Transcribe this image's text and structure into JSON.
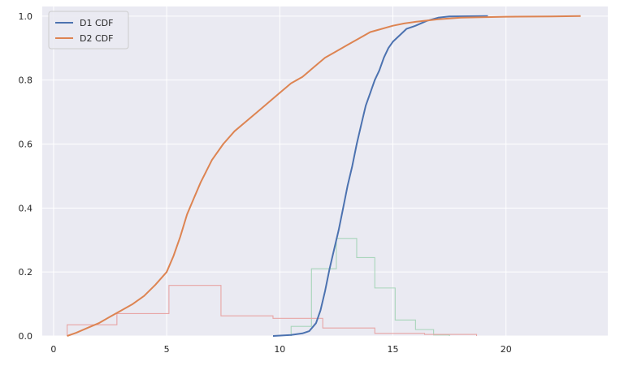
{
  "chart_data": {
    "type": "line",
    "title": "",
    "xlabel": "",
    "ylabel": "",
    "xlim": [
      -0.5,
      24.5
    ],
    "ylim": [
      0,
      1.03
    ],
    "x_ticks": [
      0,
      5,
      10,
      15,
      20
    ],
    "y_ticks": [
      0.0,
      0.2,
      0.4,
      0.6,
      0.8,
      1.0
    ],
    "grid": true,
    "legend_position": "top-left",
    "background": "#eaeaf2",
    "series": [
      {
        "name": "D1 CDF",
        "kind": "cdf",
        "color": "#4c72b0",
        "points": [
          [
            9.7,
            0.0
          ],
          [
            10.5,
            0.003
          ],
          [
            11.0,
            0.008
          ],
          [
            11.3,
            0.015
          ],
          [
            11.6,
            0.04
          ],
          [
            11.8,
            0.08
          ],
          [
            12.0,
            0.14
          ],
          [
            12.2,
            0.21
          ],
          [
            12.4,
            0.27
          ],
          [
            12.6,
            0.33
          ],
          [
            12.8,
            0.4
          ],
          [
            13.0,
            0.47
          ],
          [
            13.2,
            0.53
          ],
          [
            13.4,
            0.6
          ],
          [
            13.6,
            0.66
          ],
          [
            13.8,
            0.72
          ],
          [
            14.0,
            0.76
          ],
          [
            14.2,
            0.8
          ],
          [
            14.4,
            0.83
          ],
          [
            14.6,
            0.87
          ],
          [
            14.8,
            0.9
          ],
          [
            15.0,
            0.92
          ],
          [
            15.3,
            0.94
          ],
          [
            15.6,
            0.96
          ],
          [
            16.0,
            0.97
          ],
          [
            16.5,
            0.985
          ],
          [
            17.0,
            0.995
          ],
          [
            17.5,
            0.999
          ],
          [
            19.2,
            1.0
          ]
        ]
      },
      {
        "name": "D2 CDF",
        "kind": "cdf",
        "color": "#dd8452",
        "points": [
          [
            0.6,
            0.0
          ],
          [
            1.0,
            0.01
          ],
          [
            1.5,
            0.025
          ],
          [
            2.0,
            0.04
          ],
          [
            2.5,
            0.06
          ],
          [
            3.0,
            0.08
          ],
          [
            3.5,
            0.1
          ],
          [
            4.0,
            0.125
          ],
          [
            4.5,
            0.16
          ],
          [
            5.0,
            0.2
          ],
          [
            5.3,
            0.25
          ],
          [
            5.6,
            0.31
          ],
          [
            5.9,
            0.38
          ],
          [
            6.2,
            0.43
          ],
          [
            6.5,
            0.48
          ],
          [
            7.0,
            0.55
          ],
          [
            7.5,
            0.6
          ],
          [
            8.0,
            0.64
          ],
          [
            8.5,
            0.67
          ],
          [
            9.0,
            0.7
          ],
          [
            9.5,
            0.73
          ],
          [
            10.0,
            0.76
          ],
          [
            10.5,
            0.79
          ],
          [
            11.0,
            0.81
          ],
          [
            11.5,
            0.84
          ],
          [
            12.0,
            0.87
          ],
          [
            12.5,
            0.89
          ],
          [
            13.0,
            0.91
          ],
          [
            13.5,
            0.93
          ],
          [
            14.0,
            0.95
          ],
          [
            14.5,
            0.96
          ],
          [
            15.0,
            0.97
          ],
          [
            15.5,
            0.977
          ],
          [
            16.0,
            0.982
          ],
          [
            17.0,
            0.99
          ],
          [
            18.0,
            0.995
          ],
          [
            20.0,
            0.998
          ],
          [
            22.0,
            0.999
          ],
          [
            23.3,
            1.0
          ]
        ]
      },
      {
        "kind": "histogram",
        "color": "#a8d5ba",
        "edges": [
          10.5,
          11.4,
          12.5,
          13.4,
          14.2,
          15.1,
          16.0,
          16.8,
          17.5
        ],
        "values": [
          0.03,
          0.21,
          0.305,
          0.245,
          0.15,
          0.05,
          0.02,
          0.003
        ]
      },
      {
        "kind": "histogram",
        "color": "#e8a5a5",
        "edges": [
          0.6,
          2.8,
          5.1,
          7.4,
          9.7,
          11.9,
          14.2,
          16.4,
          18.7
        ],
        "values": [
          0.035,
          0.07,
          0.158,
          0.063,
          0.055,
          0.025,
          0.008,
          0.005
        ]
      }
    ]
  }
}
